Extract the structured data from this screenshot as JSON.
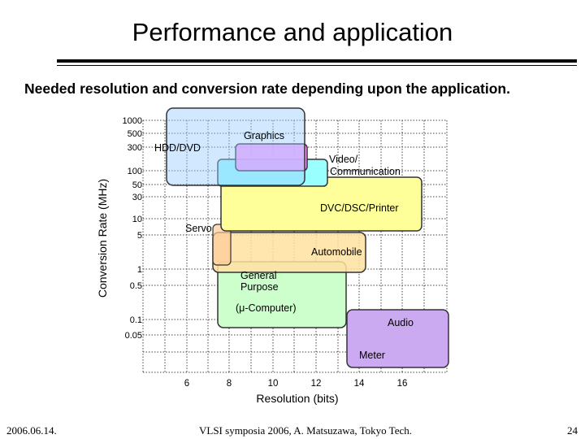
{
  "slide": {
    "title": "Performance  and application",
    "subtitle": "Needed resolution and conversion rate depending upon the application.",
    "footer_date": "2006.06.14.",
    "footer_center": "VLSI symposia 2006,  A. Matsuzawa, Tokyo Tech.",
    "page_number": "24"
  },
  "chart_data": {
    "type": "diagram",
    "xlabel": "Resolution (bits)",
    "ylabel": "Conversion Rate (MHz)",
    "x_ticks": [
      "6",
      "8",
      "10",
      "12",
      "14",
      "16"
    ],
    "y_ticks": [
      "1000",
      "500",
      "300",
      "100",
      "50",
      "30",
      "10",
      "5",
      "1",
      "0.5",
      "0.1",
      "0.05"
    ],
    "y_scale": "log",
    "regions": [
      {
        "label": "Audio",
        "color": "#ccaaf2",
        "x_range": [
          13.7,
          17.2
        ],
        "y_range": [
          0.008,
          0.15
        ]
      },
      {
        "label": "General Purpose",
        "extra_label": "(μ-Computer)",
        "color": "#ccffcc",
        "x_range": [
          7.8,
          13.8
        ],
        "y_range": [
          0.07,
          1.3
        ]
      },
      {
        "label": "Automobile",
        "color": "#ffe0a0",
        "x_range": [
          7.3,
          13.3
        ],
        "y_range": [
          0.9,
          5.5
        ]
      },
      {
        "label": "Servo",
        "color": "#ffcc99",
        "x_range": [
          6.0,
          8.0
        ],
        "y_range": [
          1.0,
          6.0
        ]
      },
      {
        "label": "DVC/DSC/Printer",
        "color": "#ffff99",
        "x_range": [
          7.9,
          15.5
        ],
        "y_range": [
          6.0,
          75
        ]
      },
      {
        "label": "Video/ Communication",
        "color": "#99ffff",
        "x_range": [
          7.8,
          12.8
        ],
        "y_range": [
          45,
          230
        ]
      },
      {
        "label": "Graphics",
        "color": "#ff99ff",
        "x_range": [
          8.4,
          11.9
        ],
        "y_range": [
          130,
          330
        ]
      },
      {
        "label": "HDD/DVD",
        "color": "#99ccff",
        "x_range": [
          6.0,
          12.0
        ],
        "y_range": [
          45,
          1050
        ]
      }
    ]
  }
}
